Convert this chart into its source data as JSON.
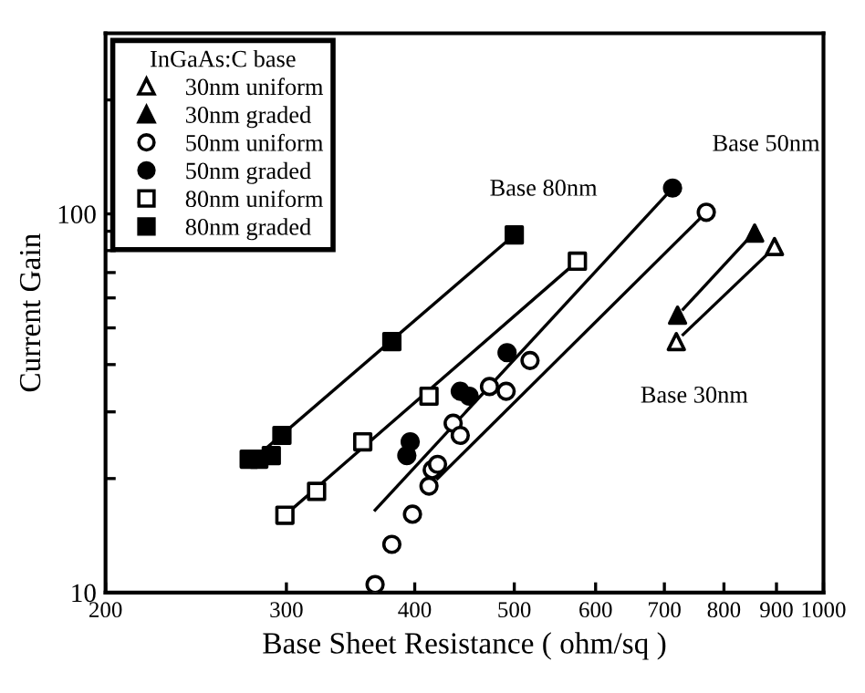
{
  "chart_data": {
    "type": "scatter",
    "xlabel": "Base Sheet Resistance ( ohm/sq )",
    "ylabel": "Current Gain",
    "log": "xy",
    "legend": "top left",
    "legend_title": "InGaAs:C base",
    "grid": false,
    "xlim": [
      200,
      1000
    ],
    "xticks": [
      200,
      300,
      400,
      500,
      600,
      700,
      800,
      900,
      1000
    ],
    "ylim": [
      10,
      300
    ],
    "yticks": [
      10,
      {
        "value": 20,
        "label": null
      },
      {
        "value": 30,
        "label": null
      },
      {
        "value": 40,
        "label": null
      },
      {
        "value": 50,
        "label": null
      },
      {
        "value": 60,
        "label": null
      },
      {
        "value": 70,
        "label": null
      },
      {
        "value": 80,
        "label": null
      },
      {
        "value": 90,
        "label": null
      },
      100,
      {
        "value": 200,
        "label": null
      }
    ],
    "series": [
      {
        "name": "30nm uniform",
        "color": "#ffffff",
        "marker": "triangle",
        "x": [
          719,
          896
        ],
        "values": [
          46,
          82
        ]
      },
      {
        "name": "30nm graded",
        "color": "#000000",
        "marker": "triangle",
        "x": [
          721,
          857
        ],
        "values": [
          54,
          89
        ]
      },
      {
        "name": "50nm uniform",
        "color": "#ffffff",
        "marker": "circle",
        "x": [
          366,
          380,
          398,
          413,
          416,
          421,
          436,
          443,
          473,
          491,
          518,
          769
        ],
        "values": [
          10.5,
          13.4,
          16.1,
          19.1,
          21.1,
          21.8,
          28,
          26,
          35,
          34,
          41,
          101
        ]
      },
      {
        "name": "50nm graded",
        "color": "#000000",
        "marker": "circle",
        "x": [
          393,
          396,
          443,
          452,
          492,
          713
        ],
        "values": [
          23,
          25,
          34,
          33,
          43,
          117
        ]
      },
      {
        "name": "80nm uniform",
        "color": "#ffffff",
        "marker": "square",
        "x": [
          299,
          321,
          356,
          413,
          576
        ],
        "values": [
          16,
          18.5,
          25,
          33,
          75
        ]
      },
      {
        "name": "80nm graded",
        "color": "#000000",
        "marker": "square",
        "x": [
          276,
          282,
          290,
          297,
          380,
          500
        ],
        "values": [
          22.5,
          22.5,
          23,
          26,
          46,
          88
        ]
      },
      {
        "type": "line",
        "color": "#000000",
        "x": [
          276,
          500
        ],
        "values": [
          22,
          88
        ]
      },
      {
        "type": "line",
        "color": "#000000",
        "x": [
          299,
          576
        ],
        "values": [
          16,
          75
        ]
      },
      {
        "type": "line",
        "color": "#000000",
        "x": [
          366,
          713
        ],
        "values": [
          16.5,
          117
        ]
      },
      {
        "type": "line",
        "color": "#000000",
        "x": [
          421,
          769
        ],
        "values": [
          20,
          101
        ]
      },
      {
        "type": "line",
        "color": "#000000",
        "x": [
          845,
          730
        ],
        "values": [
          86,
          56
        ]
      },
      {
        "type": "line",
        "color": "#000000",
        "x": [
          885,
          730
        ],
        "values": [
          79,
          48
        ]
      }
    ],
    "annotations": [
      "Base 80nm",
      "Base 50nm",
      "Base 30nm"
    ]
  }
}
